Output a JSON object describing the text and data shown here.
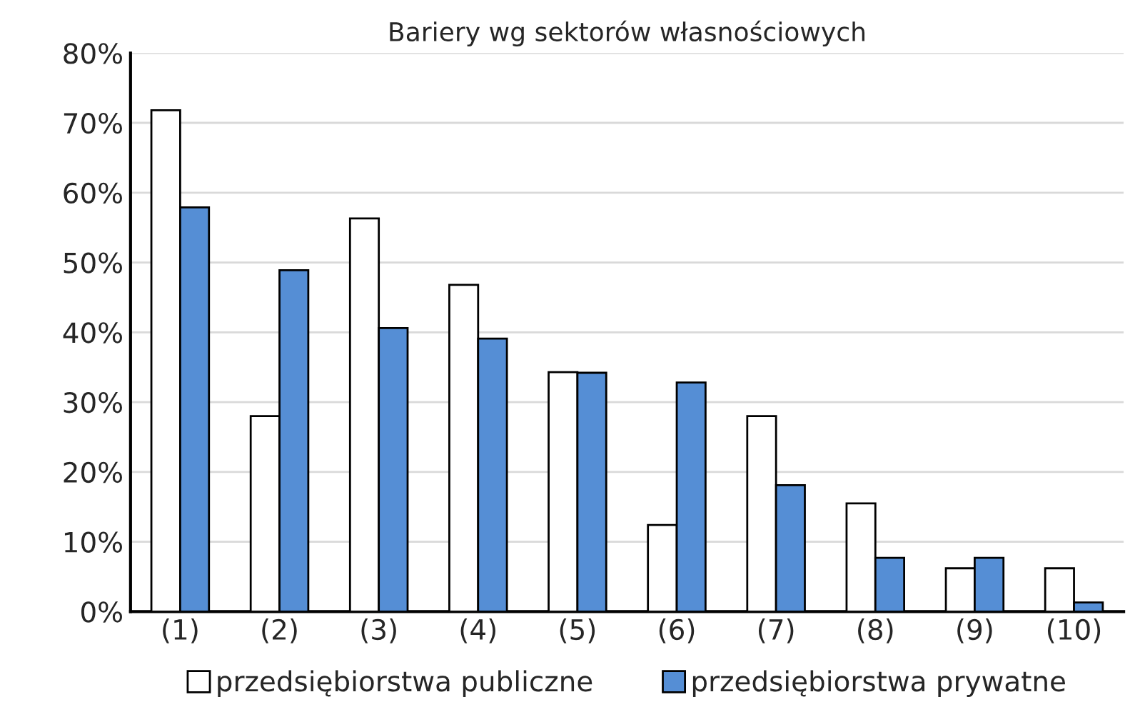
{
  "chart_data": {
    "type": "bar",
    "title": "Bariery wg sektorów własnościowych",
    "categories": [
      "(1)",
      "(2)",
      "(3)",
      "(4)",
      "(5)",
      "(6)",
      "(7)",
      "(8)",
      "(9)",
      "(10)"
    ],
    "series": [
      {
        "name": "przedsiębiorstwa publiczne",
        "color": "#ffffff",
        "values": [
          71.8,
          28.0,
          56.3,
          46.8,
          34.3,
          12.4,
          28.0,
          15.5,
          6.2,
          6.2
        ]
      },
      {
        "name": "przedsiębiorstwa prywatne",
        "color": "#558ed5",
        "values": [
          57.9,
          48.9,
          40.6,
          39.1,
          34.2,
          32.8,
          18.1,
          7.7,
          7.7,
          1.3
        ]
      }
    ],
    "ylim": [
      0,
      80
    ],
    "yticks": [
      {
        "value": 0,
        "label": "0%"
      },
      {
        "value": 10,
        "label": "10%"
      },
      {
        "value": 20,
        "label": "20%"
      },
      {
        "value": 30,
        "label": "30%"
      },
      {
        "value": 40,
        "label": "40%"
      },
      {
        "value": 50,
        "label": "50%"
      },
      {
        "value": 60,
        "label": "60%"
      },
      {
        "value": 70,
        "label": "70%"
      },
      {
        "value": 80,
        "label": "80%"
      }
    ],
    "grid": "y",
    "legend": "bottom"
  }
}
